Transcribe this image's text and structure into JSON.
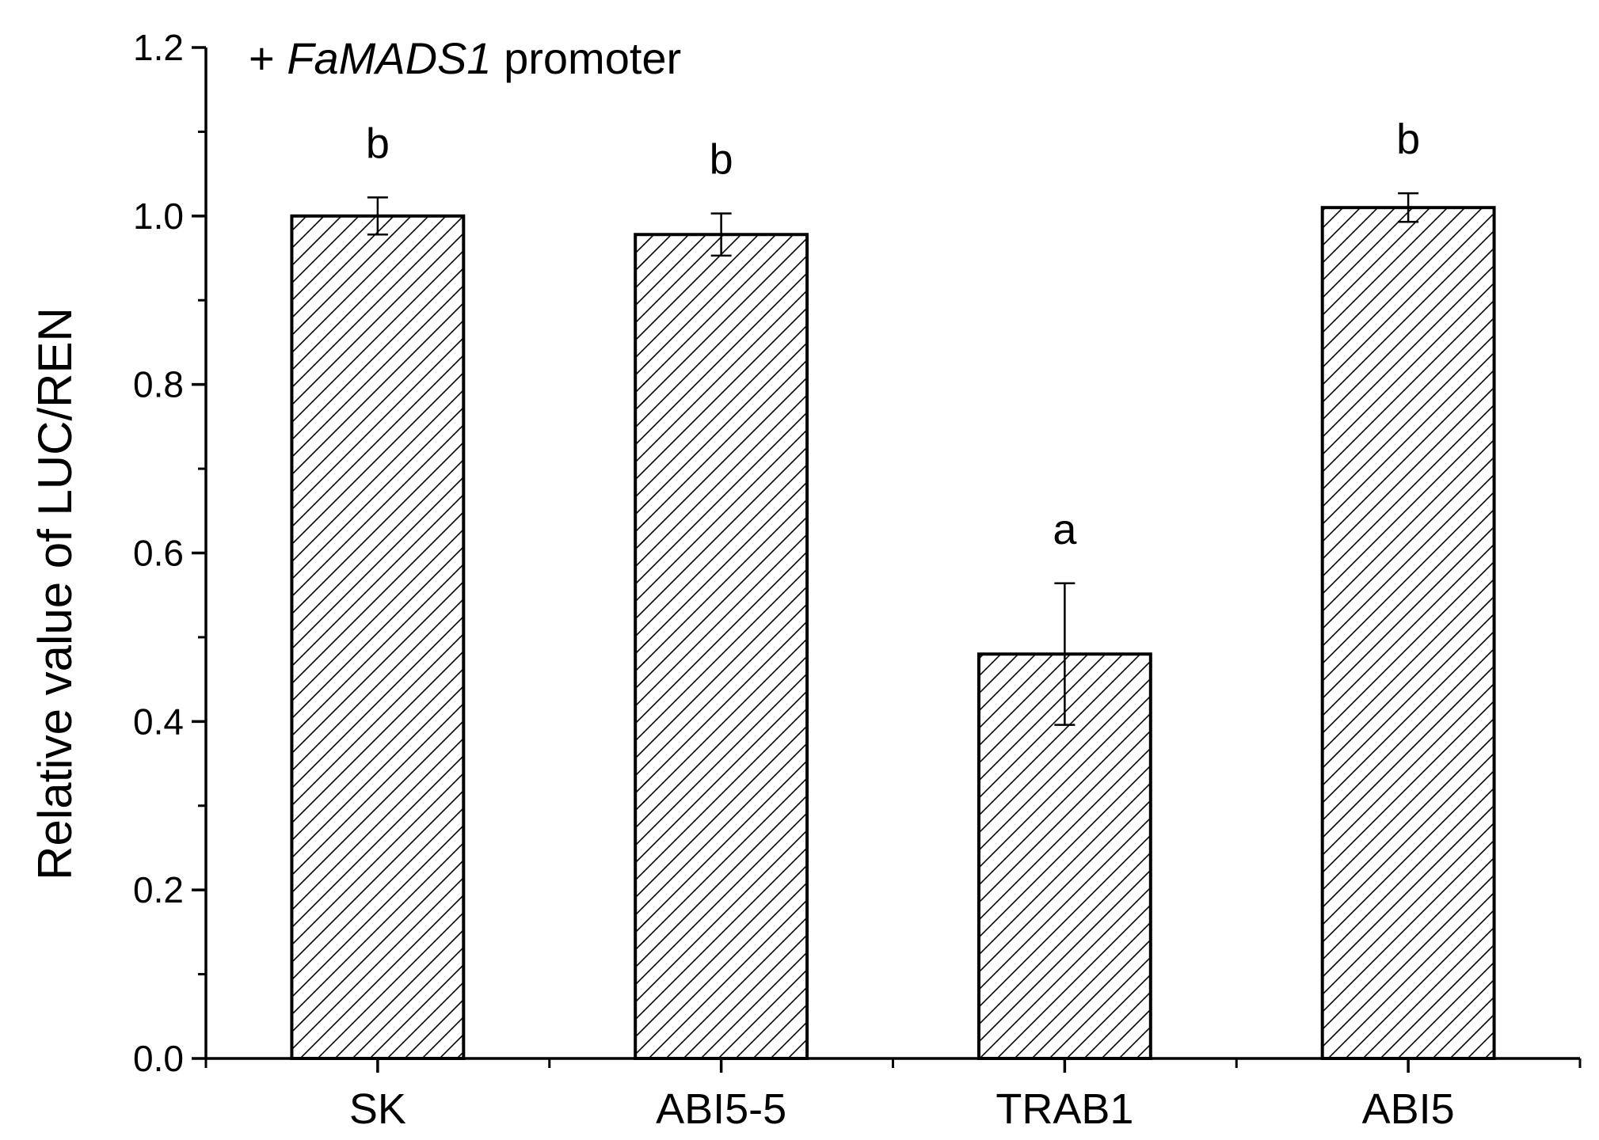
{
  "chart_data": {
    "type": "bar",
    "annotation": {
      "prefix": "+ ",
      "italic": "FaMADS1",
      "suffix": " promoter"
    },
    "xlabel": "",
    "ylabel": "Relative value of LUC/REN",
    "ylim": [
      0,
      1.2
    ],
    "y_ticks": [
      "0.0",
      "0.2",
      "0.4",
      "0.6",
      "0.8",
      "1.0",
      "1.2"
    ],
    "categories": [
      "SK",
      "ABI5-5",
      "TRAB1",
      "ABI5"
    ],
    "values": [
      1.0,
      0.978,
      0.48,
      1.01
    ],
    "errors": [
      0.022,
      0.025,
      0.084,
      0.017
    ],
    "significance": [
      "b",
      "b",
      "a",
      "b"
    ],
    "bar_fill": "diagonal-hatch",
    "colors": {
      "bar_edge": "#000000",
      "hatch": "#000000",
      "background": "#ffffff"
    },
    "grid": false,
    "legend": "none"
  }
}
